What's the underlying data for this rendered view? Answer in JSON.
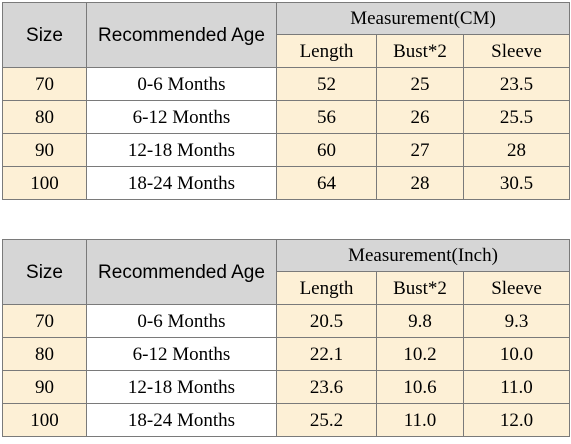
{
  "tables": [
    {
      "size_header": "Size",
      "age_header": "Recommended Age",
      "measurement_header": "Measurement(CM)",
      "sub_headers": [
        "Length",
        "Bust*2",
        "Sleeve"
      ],
      "rows": [
        {
          "size": "70",
          "age": "0-6 Months",
          "length": "52",
          "bust": "25",
          "sleeve": "23.5"
        },
        {
          "size": "80",
          "age": "6-12 Months",
          "length": "56",
          "bust": "26",
          "sleeve": "25.5"
        },
        {
          "size": "90",
          "age": "12-18 Months",
          "length": "60",
          "bust": "27",
          "sleeve": "28"
        },
        {
          "size": "100",
          "age": "18-24 Months",
          "length": "64",
          "bust": "28",
          "sleeve": "30.5"
        }
      ]
    },
    {
      "size_header": "Size",
      "age_header": "Recommended Age",
      "measurement_header": "Measurement(Inch)",
      "sub_headers": [
        "Length",
        "Bust*2",
        "Sleeve"
      ],
      "rows": [
        {
          "size": "70",
          "age": "0-6 Months",
          "length": "20.5",
          "bust": "9.8",
          "sleeve": "9.3"
        },
        {
          "size": "80",
          "age": "6-12 Months",
          "length": "22.1",
          "bust": "10.2",
          "sleeve": "10.0"
        },
        {
          "size": "90",
          "age": "12-18 Months",
          "length": "23.6",
          "bust": "10.6",
          "sleeve": "11.0"
        },
        {
          "size": "100",
          "age": "18-24 Months",
          "length": "25.2",
          "bust": "11.0",
          "sleeve": "12.0"
        }
      ]
    }
  ],
  "colors": {
    "header_gray": "#d6d6d6",
    "cell_cream": "#fdf0d6",
    "border": "#7a7a7a"
  }
}
